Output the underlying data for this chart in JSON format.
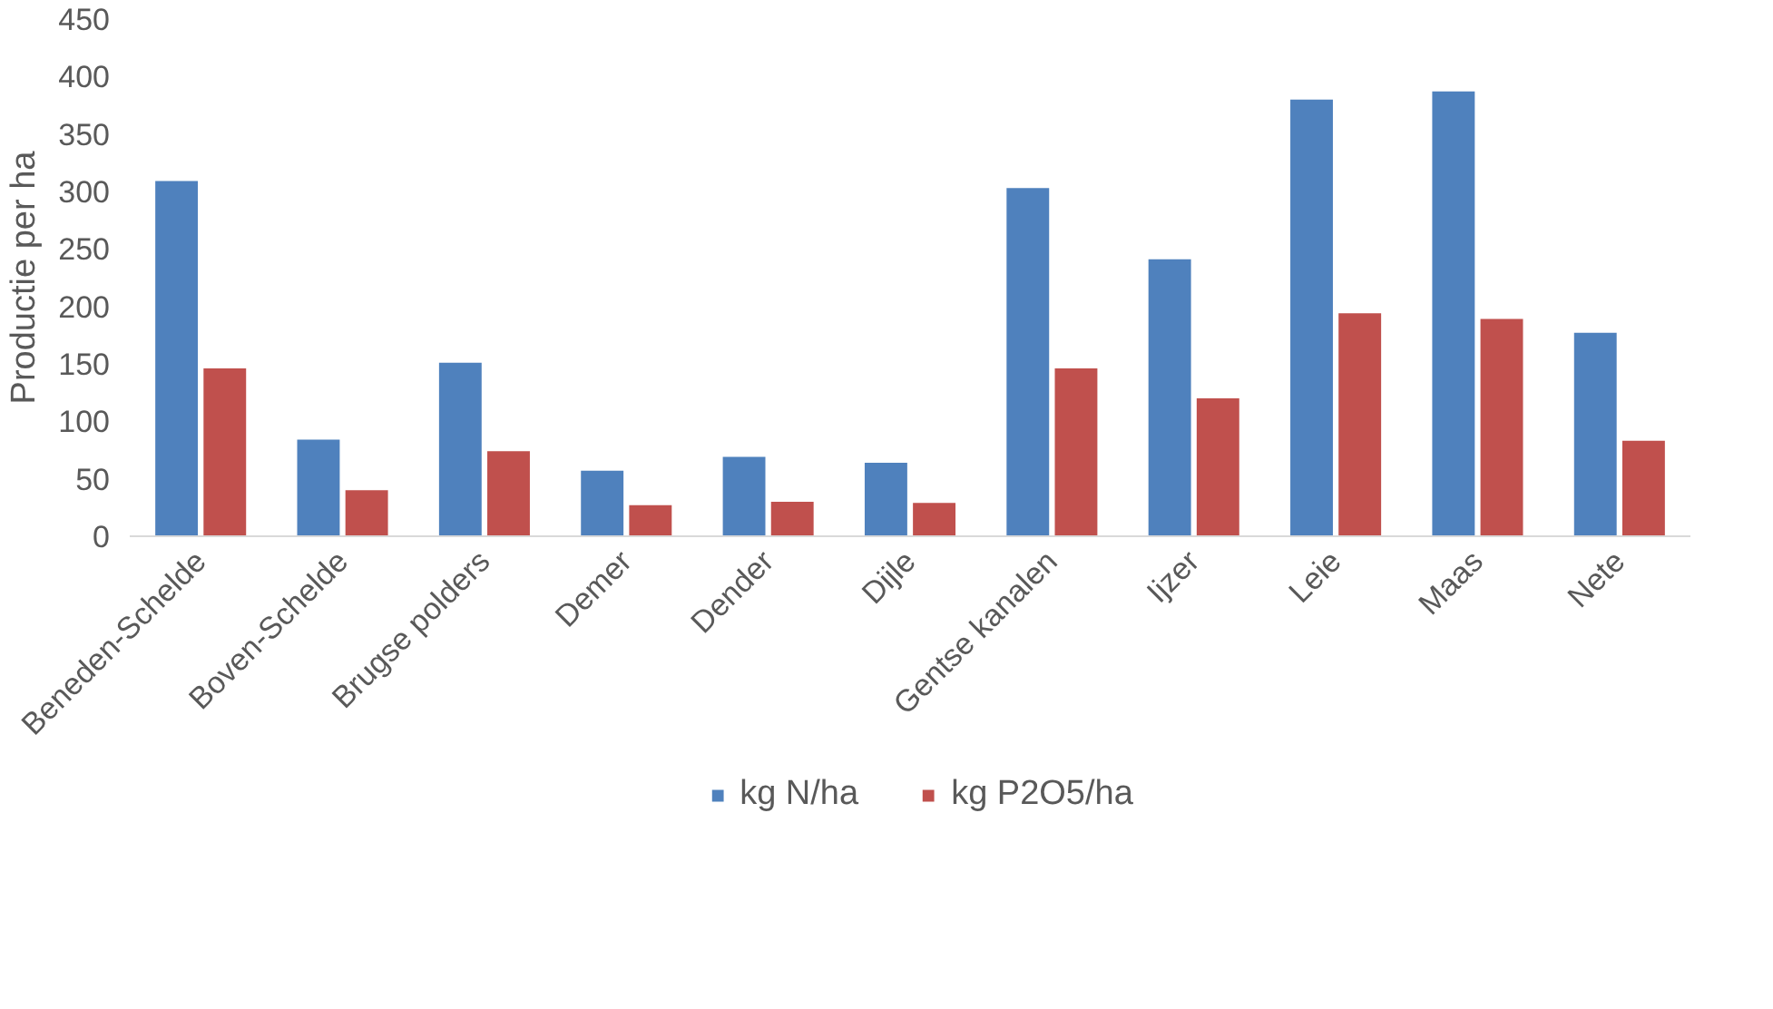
{
  "chart_data": {
    "type": "bar",
    "ylabel": "Productie per ha",
    "categories": [
      "Beneden-Schelde",
      "Boven-Schelde",
      "Brugse polders",
      "Demer",
      "Dender",
      "Dijle",
      "Gentse kanalen",
      "Ijzer",
      "Leie",
      "Maas",
      "Nete"
    ],
    "series": [
      {
        "name": "kg N/ha",
        "color": "#4f81bd",
        "values": [
          309,
          84,
          151,
          57,
          69,
          64,
          303,
          241,
          380,
          387,
          177
        ]
      },
      {
        "name": "kg P2O5/ha",
        "color": "#c0504d",
        "values": [
          146,
          40,
          74,
          27,
          30,
          29,
          146,
          120,
          194,
          189,
          83
        ]
      }
    ],
    "ylim": [
      0,
      450
    ],
    "yticks": [
      0,
      50,
      100,
      150,
      200,
      250,
      300,
      350,
      400,
      450
    ],
    "grid": false,
    "legend": "bottom"
  }
}
